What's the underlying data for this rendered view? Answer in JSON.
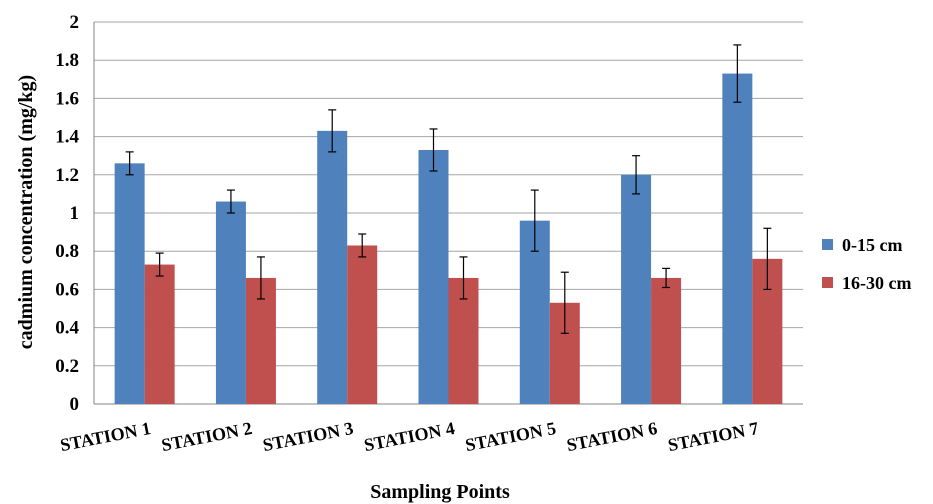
{
  "chart_data": {
    "type": "bar",
    "title": "",
    "xlabel": "Sampling Points",
    "ylabel": "cadmium concentration (mg/kg)",
    "ylim": [
      0,
      2
    ],
    "yticks": [
      "0",
      "0.2",
      "0.4",
      "0.6",
      "0.8",
      "1",
      "1.2",
      "1.4",
      "1.6",
      "1.8",
      "2"
    ],
    "grid": true,
    "legend_position": "right",
    "categories": [
      "STATION 1",
      "STATION 2",
      "STATION 3",
      "STATION 4",
      "STATION 5",
      "STATION 6",
      "STATION 7"
    ],
    "series": [
      {
        "name": "0-15 cm",
        "color": "#4F81BD",
        "values": [
          1.26,
          1.06,
          1.43,
          1.33,
          0.96,
          1.2,
          1.73
        ],
        "errors": [
          0.06,
          0.06,
          0.11,
          0.11,
          0.16,
          0.1,
          0.15
        ]
      },
      {
        "name": "16-30 cm",
        "color": "#C0504D",
        "values": [
          0.73,
          0.66,
          0.83,
          0.66,
          0.53,
          0.66,
          0.76
        ],
        "errors": [
          0.06,
          0.11,
          0.06,
          0.11,
          0.16,
          0.05,
          0.16
        ]
      }
    ]
  }
}
